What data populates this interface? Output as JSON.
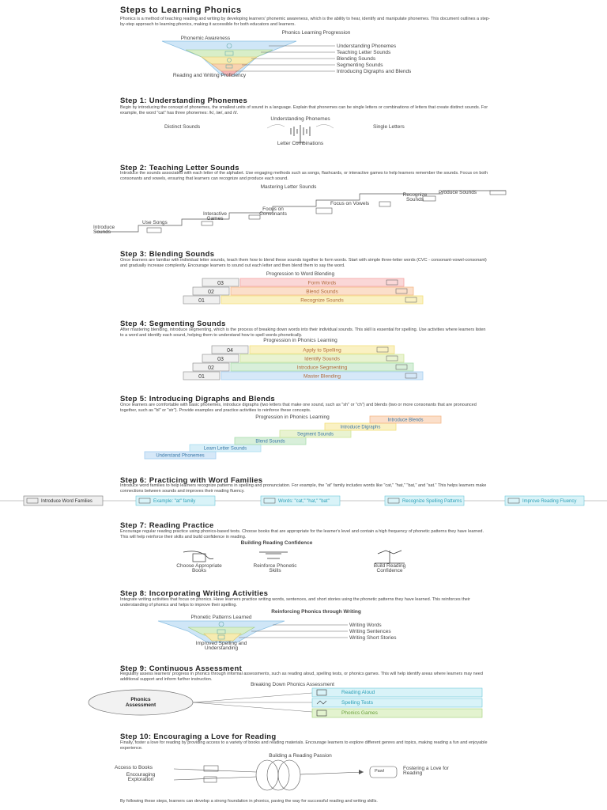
{
  "title": "Steps to Learning Phonics",
  "intro": "Phonics is a method of teaching reading and writing by developing learners' phonemic awareness, which is the ability to hear, identify and manipulate phonemes. This document outlines a step-by-step approach to learning phonics, making it accessible for both educators and learners.",
  "funnel1": {
    "title": "Phonics Learning Progression",
    "top": "Phonemic Awareness",
    "bottom": "Reading and Writing Proficiency",
    "items": [
      "Understanding Phonemes",
      "Teaching Letter Sounds",
      "Blending Sounds",
      "Segmenting Sounds",
      "Introducing Digraphs and Blends"
    ]
  },
  "step1": {
    "heading": "Step 1: Understanding Phonemes",
    "text": "Begin by introducing the concept of phonemes, the smallest units of sound in a language. Explain that phonemes can be single letters or combinations of letters that create distinct sounds. For example, the word \"cat\" has three phonemes: /k/, /æ/, and /t/.",
    "diagram": {
      "title": "Understanding Phonemes",
      "left": "Distinct Sounds",
      "right": "Single Letters",
      "bottom": "Letter Combinations"
    }
  },
  "step2": {
    "heading": "Step 2: Teaching Letter Sounds",
    "text": "Introduce the sounds associated with each letter of the alphabet. Use engaging methods such as songs, flashcards, or interactive games to help learners remember the sounds. Focus on both consonants and vowels, ensuring that learners can recognize and produce each sound.",
    "title": "Mastering Letter Sounds",
    "steps": [
      "Introduce Sounds",
      "Use Songs",
      "Interactive Games",
      "Focus on Consonants",
      "Focus on Vowels",
      "Recognize Sounds",
      "Produce Sounds"
    ]
  },
  "step3": {
    "heading": "Step 3: Blending Sounds",
    "text": "Once learners are familiar with individual letter sounds, teach them how to blend these sounds together to form words. Start with simple three-letter words (CVC - consonant-vowel-consonant) and gradually increase complexity. Encourage learners to sound out each letter and then blend them to say the word.",
    "title": "Progression to Word Blending",
    "levels": [
      {
        "num": "03",
        "label": "Form Words",
        "color": "#f4a6a6"
      },
      {
        "num": "02",
        "label": "Blend Sounds",
        "color": "#f6b88a"
      },
      {
        "num": "01",
        "label": "Recognize Sounds",
        "color": "#f3df7a"
      }
    ]
  },
  "step4": {
    "heading": "Step 4: Segmenting Sounds",
    "text": "After mastering blending, introduce segmenting, which is the process of breaking down words into their individual sounds. This skill is essential for spelling. Use activities where learners listen to a word and identify each sound, helping them to understand how to spell words phonetically.",
    "title": "Progression in Phonics Learning",
    "levels": [
      {
        "num": "04",
        "label": "Apply to Spelling",
        "color": "#f3df7a"
      },
      {
        "num": "03",
        "label": "Identify Sounds",
        "color": "#cfe59a"
      },
      {
        "num": "02",
        "label": "Introduce Segmenting",
        "color": "#a9dcae"
      },
      {
        "num": "01",
        "label": "Master Blending",
        "color": "#a3cdf0"
      }
    ]
  },
  "step5": {
    "heading": "Step 5: Introducing Digraphs and Blends",
    "text": "Once learners are comfortable with basic phonemes, introduce digraphs (two letters that make one sound, such as \"sh\" or \"ch\") and blends (two or more consonants that are pronounced together, such as \"bl\" or \"str\"). Provide examples and practice activities to reinforce these concepts.",
    "title": "Progression in Phonics Learning",
    "steps": [
      "Understand Phonemes",
      "Learn Letter Sounds",
      "Blend Sounds",
      "Segment Sounds",
      "Introduce Digraphs",
      "Introduce Blends"
    ]
  },
  "step6": {
    "heading": "Step 6: Practicing with Word Families",
    "text": "Introduce word families to help learners recognize patterns in spelling and pronunciation. For example, the \"at\" family includes words like \"cat,\" \"hat,\" \"bat,\" and \"sat.\" This helps learners make connections between sounds and improves their reading fluency.",
    "flow": [
      "Introduce Word Families",
      "Example: \"at\" family",
      "Words: \"cat,\" \"hat,\" \"bat\"",
      "Recognize Spelling Patterns",
      "Improve Reading Fluency"
    ]
  },
  "step7": {
    "heading": "Step 7: Reading Practice",
    "text": "Encourage regular reading practice using phonics-based texts. Choose books that are appropriate for the learner's level and contain a high frequency of phonetic patterns they have learned. This will help reinforce their skills and build confidence in reading.",
    "title": "Building Reading Confidence",
    "items": [
      "Choose Appropriate Books",
      "Reinforce Phonetic Skills",
      "Build Reading Confidence"
    ]
  },
  "step8": {
    "heading": "Step 8: Incorporating Writing Activities",
    "text": "Integrate writing activities that focus on phonics. Have learners practice writing words, sentences, and short stories using the phonetic patterns they have learned. This reinforces their understanding of phonics and helps to improve their spelling.",
    "title": "Reinforcing Phonics through Writing",
    "top": "Phonetic Patterns Learned",
    "bottom": "Improved Spelling and Understanding",
    "items": [
      "Writing Words",
      "Writing Sentences",
      "Writing Short Stories"
    ]
  },
  "step9": {
    "heading": "Step 9: Continuous Assessment",
    "text": "Regularly assess learners' progress in phonics through informal assessments, such as reading aloud, spelling tests, or phonics games. This will help identify areas where learners may need additional support and inform further instruction.",
    "title": "Breaking Down Phonics Assessment",
    "center": "Phonics Assessment",
    "items": [
      "Reading Aloud",
      "Spelling Tests",
      "Phonics Games"
    ]
  },
  "step10": {
    "heading": "Step 10: Encouraging a Love for Reading",
    "text": "Finally, foster a love for reading by providing access to a variety of books and reading materials. Encourage learners to explore different genres and topics, making reading a fun and enjoyable experience.",
    "title": "Building a Reading Passion",
    "left": [
      "Access to Books",
      "Encouraging Exploration"
    ],
    "right": "Fostering a Love for Reading"
  },
  "conclusion": "By following these steps, learners can develop a strong foundation in phonics, paving the way for successful reading and writing skills."
}
